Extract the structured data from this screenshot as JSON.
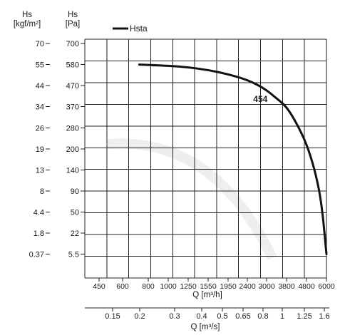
{
  "chart_data": {
    "type": "line",
    "legend": {
      "label": "Hsta",
      "position": "top-left"
    },
    "left_axis_outer": {
      "title_line1": "Hs",
      "title_line2": "[kgf/m²]",
      "ticks": [
        "70",
        "55",
        "44",
        "34",
        "26",
        "19",
        "13",
        "8",
        "4.4",
        "1.8",
        "0.37"
      ]
    },
    "left_axis_inner": {
      "title_line1": "Hs",
      "title_line2": "[Pa]",
      "ticks": [
        "700",
        "580",
        "470",
        "370",
        "280",
        "200",
        "140",
        "90",
        "50",
        "22",
        "5.5"
      ]
    },
    "x_axis_primary": {
      "title": "Q [m³/h]",
      "ticks": [
        "450",
        "600",
        "800",
        "1000",
        "1250",
        "1550",
        "1950",
        "2400",
        "3000",
        "3800",
        "4800",
        "6000"
      ]
    },
    "x_axis_secondary": {
      "title": "Q [m³/s]",
      "ticks": [
        "0.15",
        "0.2",
        "0.3",
        "0.4",
        "0.5",
        "0.65",
        "0.8",
        "1",
        "1.25",
        "1.6"
      ]
    },
    "series": [
      {
        "name": "454",
        "x_unit": "m³/h",
        "y_unit": "Pa",
        "x": [
          730,
          800,
          1000,
          1250,
          1550,
          1950,
          2400,
          2900,
          3400,
          3800,
          4300,
          4800,
          5300,
          5700,
          6000
        ],
        "y": [
          580,
          578,
          574,
          566,
          552,
          530,
          500,
          460,
          410,
          370,
          300,
          220,
          140,
          70,
          5.5
        ]
      }
    ]
  }
}
